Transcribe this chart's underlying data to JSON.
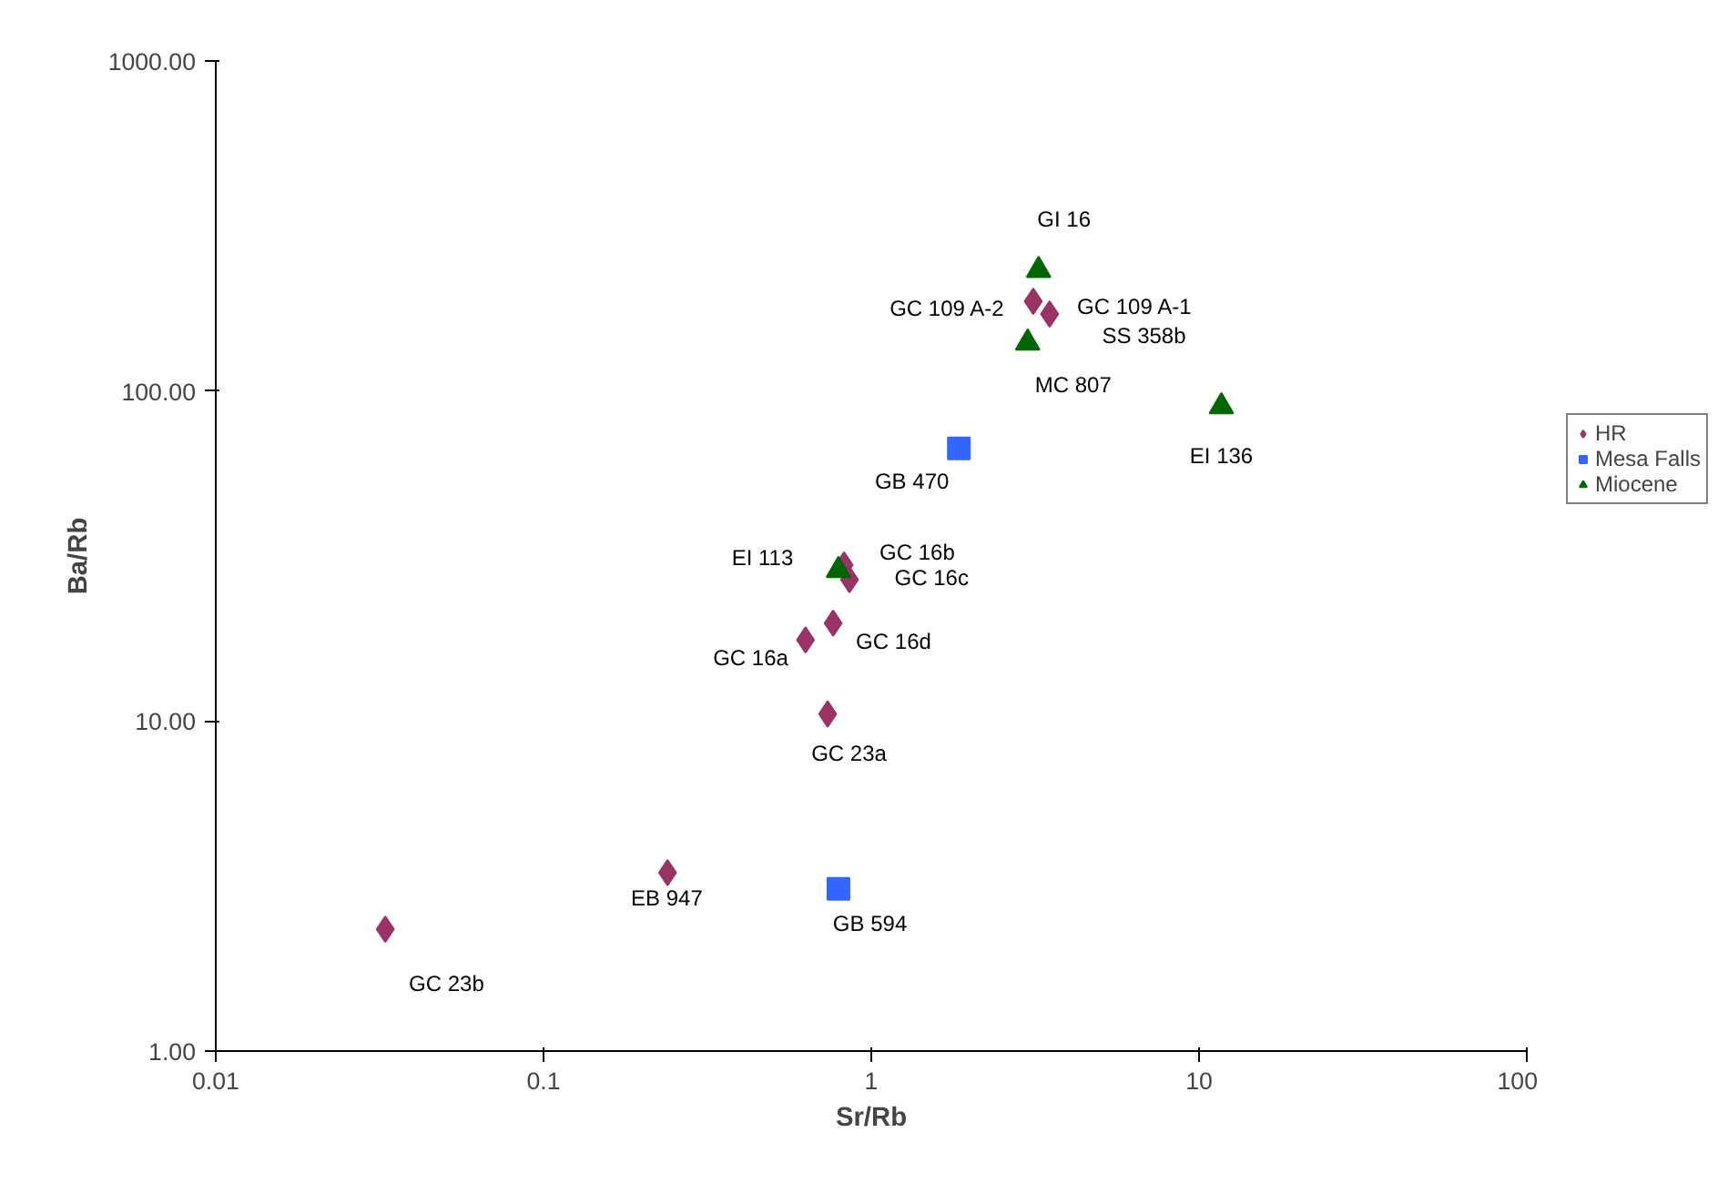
{
  "chart_data": {
    "type": "scatter",
    "xlabel": "Sr/Rb",
    "ylabel": "Ba/Rb",
    "log": "xy",
    "grid": false,
    "legend": "right",
    "xlim": [
      0.01,
      100
    ],
    "xticks": [
      0.01,
      0.1,
      1,
      10,
      100
    ],
    "ylim": [
      1,
      1000
    ],
    "yticks": [
      {
        "value": 1,
        "label": "1.00"
      },
      {
        "value": 10,
        "label": "10.00"
      },
      {
        "value": 100,
        "label": "100.00"
      },
      {
        "value": 1000,
        "label": "1000.00"
      }
    ],
    "series": [
      {
        "name": "HR",
        "color": "#993366",
        "marker": "diamond",
        "x": [
          0.0329,
          0.239,
          0.736,
          0.63,
          0.765,
          0.826,
          0.858,
          3.12,
          3.5
        ],
        "values": [
          2.34,
          3.47,
          10.5,
          17.6,
          19.8,
          29.7,
          26.8,
          187,
          171
        ]
      },
      {
        "name": "Mesa Falls",
        "color": "#3366ff",
        "marker": "square",
        "x": [
          1.85,
          0.794
        ],
        "values": [
          67,
          3.1
        ]
      },
      {
        "name": "Miocene",
        "color": "#006600",
        "marker": "triangle",
        "x": [
          3.24,
          3.0,
          11.7,
          0.794
        ],
        "values": [
          232,
          140,
          89.7,
          28.6
        ]
      }
    ],
    "annotations": [
      "GC 23b",
      "EB 947",
      "GC 23a",
      "GC 16a",
      "GC 16d",
      "GC 16b",
      "GC 16c",
      "EI 113",
      "GC 109 A-2",
      "GC 109 A-1",
      "SS 358b",
      "GI 16",
      "MC 807",
      "EI 136",
      "GB 470",
      "GB 594"
    ]
  }
}
